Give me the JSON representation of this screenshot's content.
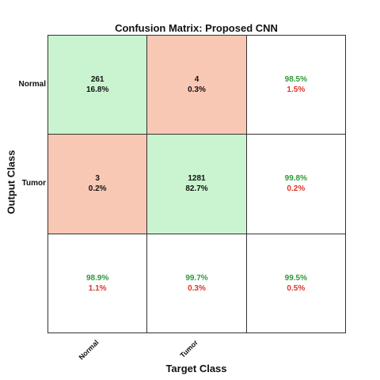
{
  "chart_data": {
    "type": "heatmap",
    "title": "Confusion Matrix: Proposed CNN",
    "xlabel": "Target Class",
    "ylabel": "Output Class",
    "classes": [
      "Normal",
      "Tumor"
    ],
    "matrix": [
      [
        {
          "count": "261",
          "pct": "16.8%"
        },
        {
          "count": "4",
          "pct": "0.3%"
        }
      ],
      [
        {
          "count": "3",
          "pct": "0.2%"
        },
        {
          "count": "1281",
          "pct": "82.7%"
        }
      ]
    ],
    "row_summary": [
      {
        "correct": "98.5%",
        "error": "1.5%"
      },
      {
        "correct": "99.8%",
        "error": "0.2%"
      }
    ],
    "col_summary": [
      {
        "correct": "98.9%",
        "error": "1.1%"
      },
      {
        "correct": "99.7%",
        "error": "0.3%"
      }
    ],
    "overall": {
      "correct": "99.5%",
      "error": "0.5%"
    },
    "colors": {
      "diagonal": "#c9f4cf",
      "off_diagonal": "#f9c8b4",
      "correct_text": "#2e9a3a",
      "error_text": "#e0342c"
    }
  }
}
